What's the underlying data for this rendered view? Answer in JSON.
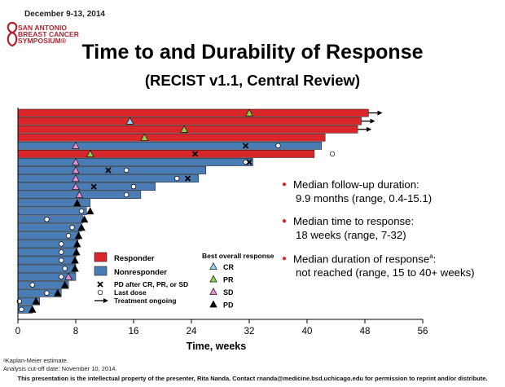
{
  "header": {
    "date": "December 9-13, 2014",
    "logo_lines": [
      "SAN ANTONIO",
      "BREAST CANCER",
      "SYMPOSIUM®"
    ]
  },
  "title": "Time to and Durability of Response",
  "subtitle": "(RECIST v1.1, Central Review)",
  "bullets": [
    {
      "line1": "Median follow-up duration:",
      "line2": "9.9 months (range, 0.4-15.1)"
    },
    {
      "line1": "Median time to response:",
      "line2": "18 weeks (range, 7-32)"
    },
    {
      "line1": "Median duration of response",
      "sup": "a",
      "line1_tail": ":",
      "line2": "not reached (range, 15 to 40+ weeks)"
    }
  ],
  "footnotes": [
    "ᵃKaplan-Meier estimate.",
    "Analysis cut-off date: November 10, 2014."
  ],
  "footer": "This presentation is the intellectual property of the presenter, Rita Nanda. Contact rnanda@medicine.bsd.uchicago.edu for permission to reprint and/or distribute.",
  "colors": {
    "responder": "#d9262b",
    "nonresponder": "#4a7db5",
    "cr": "#8fd3e8",
    "pr": "#8fd14f",
    "sd": "#e98fd0",
    "pd": "#000000"
  },
  "chart_data": {
    "type": "bar",
    "orientation": "horizontal",
    "xlabel": "Time, weeks",
    "xlim": [
      0,
      56
    ],
    "xticks": [
      0,
      8,
      16,
      24,
      32,
      40,
      48,
      56
    ],
    "legend_groups": [
      {
        "key": "responder",
        "label": "Responder"
      },
      {
        "key": "nonresponder",
        "label": "Nonresponder"
      }
    ],
    "legend_markers": [
      {
        "key": "x",
        "label": "PD after CR, PR, or SD"
      },
      {
        "key": "o",
        "label": "Last dose"
      },
      {
        "key": "arrow",
        "label": "Treatment ongoing"
      }
    ],
    "legend_response_title": "Best overall response",
    "legend_response": [
      {
        "key": "cr",
        "label": "CR"
      },
      {
        "key": "pr",
        "label": "PR"
      },
      {
        "key": "sd",
        "label": "SD"
      },
      {
        "key": "pd",
        "label": "PD"
      }
    ],
    "patients": [
      {
        "duration": 48.5,
        "group": "responder",
        "ongoing": true,
        "response": "pr",
        "response_week": 32
      },
      {
        "duration": 47.5,
        "group": "responder",
        "ongoing": true,
        "response": "cr",
        "response_week": 15.5
      },
      {
        "duration": 47,
        "group": "responder",
        "ongoing": true,
        "response": "pr",
        "response_week": 23
      },
      {
        "duration": 42.5,
        "group": "responder",
        "ongoing": false,
        "response": "pr",
        "response_week": 17.5
      },
      {
        "duration": 42,
        "group": "nonresponder",
        "ongoing": false,
        "response": "sd",
        "response_week": 8,
        "pd_week": 31.5,
        "last_dose": 36
      },
      {
        "duration": 41,
        "group": "responder",
        "ongoing": false,
        "response": "pr",
        "response_week": 10,
        "pd_week": 24.5,
        "last_dose": 43.5
      },
      {
        "duration": 32.5,
        "group": "nonresponder",
        "ongoing": false,
        "response": "sd",
        "response_week": 8,
        "pd_week": 32,
        "last_dose": 31.5
      },
      {
        "duration": 26,
        "group": "nonresponder",
        "ongoing": false,
        "response": "sd",
        "response_week": 8,
        "pd_week": 12.5,
        "last_dose": 15
      },
      {
        "duration": 25,
        "group": "nonresponder",
        "ongoing": false,
        "response": "sd",
        "response_week": 8,
        "pd_week": 23.5,
        "last_dose": 22
      },
      {
        "duration": 19,
        "group": "nonresponder",
        "ongoing": false,
        "response": "sd",
        "response_week": 8,
        "pd_week": 10.5,
        "last_dose": 16
      },
      {
        "duration": 17,
        "group": "nonresponder",
        "ongoing": false,
        "response": "sd",
        "response_week": 8.5,
        "last_dose": 15
      },
      {
        "duration": 10,
        "group": "nonresponder",
        "ongoing": false,
        "response": "pd",
        "response_week": 8.2,
        "pd_week": 8.2
      },
      {
        "duration": 9.5,
        "group": "nonresponder",
        "ongoing": false,
        "response": "pd",
        "response_week": 10,
        "last_dose": 8.8
      },
      {
        "duration": 9,
        "group": "nonresponder",
        "ongoing": false,
        "response": "pd",
        "response_week": 9.2,
        "last_dose": 4
      },
      {
        "duration": 8.8,
        "group": "nonresponder",
        "ongoing": false,
        "response": "pd",
        "response_week": 8.8,
        "last_dose": 7.5
      },
      {
        "duration": 8.5,
        "group": "nonresponder",
        "ongoing": false,
        "response": "pd",
        "response_week": 8.4,
        "last_dose": 7
      },
      {
        "duration": 8.3,
        "group": "nonresponder",
        "ongoing": false,
        "response": "pd",
        "response_week": 8.2,
        "last_dose": 6
      },
      {
        "duration": 8.2,
        "group": "nonresponder",
        "ongoing": false,
        "response": "pd",
        "response_week": 8.1,
        "last_dose": 6
      },
      {
        "duration": 8,
        "group": "nonresponder",
        "ongoing": false,
        "response": "pd",
        "response_week": 7.9,
        "last_dose": 6
      },
      {
        "duration": 8,
        "group": "nonresponder",
        "ongoing": false,
        "response": "pd",
        "response_week": 7.9,
        "last_dose": 6.5
      },
      {
        "duration": 8,
        "group": "nonresponder",
        "ongoing": false,
        "response": "sd",
        "response_week": 7,
        "last_dose": 6
      },
      {
        "duration": 7,
        "group": "nonresponder",
        "ongoing": false,
        "response": "pd",
        "response_week": 6.5,
        "last_dose": 2
      },
      {
        "duration": 6,
        "group": "nonresponder",
        "ongoing": false,
        "response": "pd",
        "response_week": 5.5,
        "last_dose": 4
      },
      {
        "duration": 3,
        "group": "nonresponder",
        "ongoing": false,
        "response": "pd",
        "response_week": 2.5,
        "last_dose": 0.2
      },
      {
        "duration": 2,
        "group": "nonresponder",
        "ongoing": false,
        "response": "pd",
        "response_week": 2,
        "last_dose": 0.5
      }
    ]
  }
}
